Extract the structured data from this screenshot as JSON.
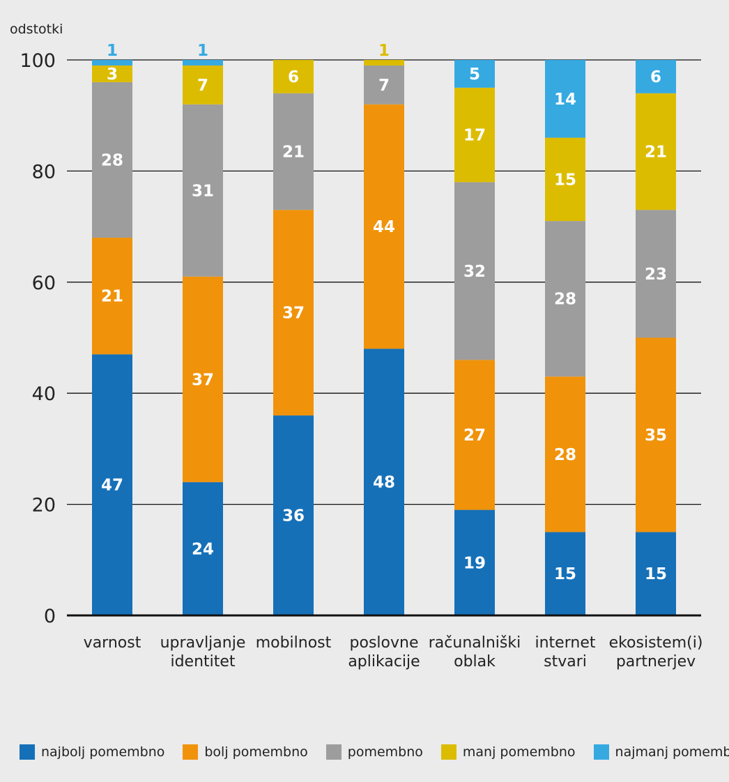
{
  "chart_data": {
    "type": "bar",
    "stacked": true,
    "ylabel": "odstotki",
    "ylim": [
      0,
      100
    ],
    "yticks": [
      0,
      20,
      40,
      60,
      80,
      100
    ],
    "grid": true,
    "legend_position": "bottom",
    "categories": [
      [
        "varnost"
      ],
      [
        "upravljanje",
        "identitet"
      ],
      [
        "mobilnost"
      ],
      [
        "poslovne",
        "aplikacije"
      ],
      [
        "računalniški",
        "oblak"
      ],
      [
        "internet",
        "stvari"
      ],
      [
        "ekosistem(i)",
        "partnerjev"
      ]
    ],
    "series": [
      {
        "name": "najbolj pomembno",
        "color": "#1570b8",
        "label_color": "#ffffff",
        "values": [
          47,
          24,
          36,
          48,
          19,
          15,
          15
        ]
      },
      {
        "name": "bolj pomembno",
        "color": "#f0930a",
        "label_color": "#ffffff",
        "values": [
          21,
          37,
          37,
          44,
          27,
          28,
          35
        ]
      },
      {
        "name": "pomembno",
        "color": "#9d9d9d",
        "label_color": "#ffffff",
        "values": [
          28,
          31,
          21,
          7,
          32,
          28,
          23
        ]
      },
      {
        "name": "manj pomembno",
        "color": "#dcbc00",
        "label_color": "#ffffff",
        "values": [
          3,
          7,
          6,
          1,
          17,
          15,
          21
        ]
      },
      {
        "name": "najmanj pomembno",
        "color": "#36a9e1",
        "label_color": "#ffffff",
        "values": [
          1,
          1,
          0,
          0,
          5,
          14,
          6
        ]
      }
    ]
  }
}
